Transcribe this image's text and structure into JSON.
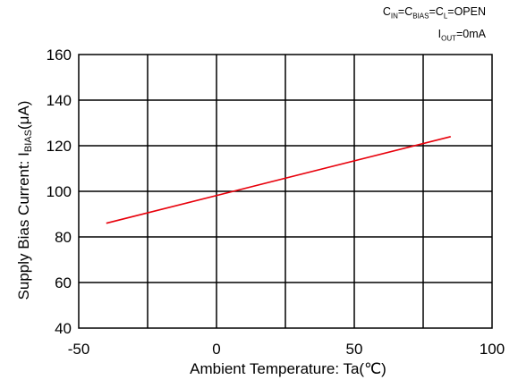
{
  "conditions": {
    "line1_parts": [
      {
        "t": "C",
        "sub": false
      },
      {
        "t": "IN",
        "sub": true
      },
      {
        "t": "=C",
        "sub": false
      },
      {
        "t": "BIAS",
        "sub": true
      },
      {
        "t": "=C",
        "sub": false
      },
      {
        "t": "L",
        "sub": true
      },
      {
        "t": "=OPEN",
        "sub": false
      }
    ],
    "line2_parts": [
      {
        "t": "I",
        "sub": false
      },
      {
        "t": "OUT",
        "sub": true
      },
      {
        "t": "=0mA",
        "sub": false
      }
    ]
  },
  "chart_data": {
    "type": "line",
    "xlabel": "Ambient Temperature: Ta(℃)",
    "ylabel_parts": [
      {
        "t": "Supply Bias Current: I",
        "sub": false
      },
      {
        "t": "BIAS",
        "sub": true
      },
      {
        "t": "(μA)",
        "sub": false
      }
    ],
    "xlim": [
      -50,
      100
    ],
    "ylim": [
      40,
      160
    ],
    "xticks": [
      -50,
      0,
      50,
      100
    ],
    "yticks": [
      40,
      60,
      80,
      100,
      120,
      140,
      160
    ],
    "x_minor_grid": [
      -25,
      25,
      75
    ],
    "grid": true,
    "series": [
      {
        "color": "#e8000b",
        "x": [
          -40,
          85
        ],
        "y": [
          86,
          124
        ]
      }
    ]
  }
}
